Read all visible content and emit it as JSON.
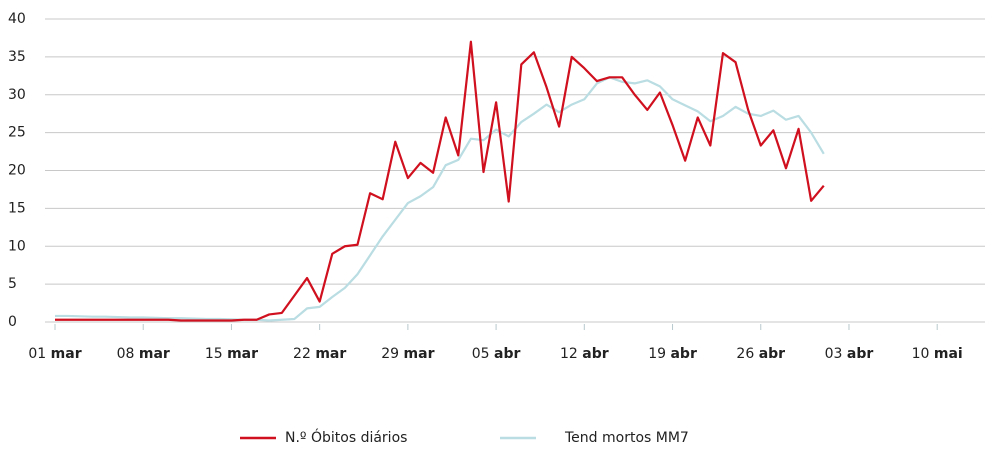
{
  "chart_data": {
    "type": "line",
    "categories": [
      "01 mar",
      null,
      null,
      null,
      null,
      null,
      null,
      "08 mar",
      null,
      null,
      null,
      null,
      null,
      null,
      "15 mar",
      null,
      null,
      null,
      null,
      null,
      null,
      "22 mar",
      null,
      null,
      null,
      null,
      null,
      null,
      "29 mar",
      null,
      null,
      null,
      null,
      null,
      null,
      "05 abr",
      null,
      null,
      null,
      null,
      null,
      null,
      "12 abr",
      null,
      null,
      null,
      null,
      null,
      null,
      "19 abr",
      null,
      null,
      null,
      null,
      null,
      null,
      "26 abr",
      null,
      null,
      null,
      null,
      null,
      null,
      "03 abr",
      null,
      null,
      null,
      null,
      null,
      null,
      "10 mai",
      null,
      null,
      null
    ],
    "series": [
      {
        "name": "N.º Óbitos diários",
        "color": "#d0101e",
        "values": [
          0.3,
          0.3,
          0.3,
          0.3,
          0.3,
          0.3,
          0.3,
          0.3,
          0.3,
          0.3,
          0.2,
          0.2,
          0.2,
          0.2,
          0.2,
          0.3,
          0.3,
          1,
          1.2,
          3.5,
          5.8,
          2.7,
          9,
          10,
          10.2,
          17,
          16.2,
          23.8,
          19,
          21,
          19.7,
          27,
          22,
          37,
          19.8,
          29,
          15.9,
          34,
          35.6,
          31,
          25.8,
          35,
          33.5,
          31.8,
          32.3,
          32.3,
          30,
          28,
          30.3,
          26,
          21.3,
          27,
          23.3,
          35.5,
          34.3,
          28,
          23.3,
          25.3,
          20.3,
          25.5,
          16,
          18,
          null,
          null,
          null,
          null,
          null,
          null,
          null,
          null,
          null,
          null,
          null,
          null
        ]
      },
      {
        "name": "Tend mortos MM7",
        "color": "#b9dde2",
        "values": [
          0.8,
          0.8,
          0.75,
          0.7,
          0.7,
          0.65,
          0.6,
          0.6,
          0.55,
          0.5,
          0.5,
          0.45,
          0.4,
          0.4,
          0.35,
          0.3,
          0.3,
          0.2,
          0.3,
          0.4,
          1.8,
          2,
          3.3,
          4.5,
          6.3,
          8.8,
          11.3,
          13.5,
          15.7,
          16.6,
          17.8,
          20.7,
          21.4,
          24.2,
          24,
          25.4,
          24.5,
          26.4,
          27.5,
          28.7,
          27.7,
          28.7,
          29.4,
          31.5,
          32.3,
          31.7,
          31.5,
          31.9,
          31.1,
          29.4,
          28.6,
          27.8,
          26.5,
          27.2,
          28.4,
          27.5,
          27.2,
          27.9,
          26.7,
          27.2,
          25,
          22.2,
          null,
          null,
          null,
          null,
          null,
          null,
          null,
          null,
          null,
          null,
          null,
          null
        ]
      }
    ],
    "ylim": [
      0,
      40
    ],
    "yticks": [
      0,
      5,
      10,
      15,
      20,
      25,
      30,
      35,
      40
    ],
    "grid": true
  }
}
